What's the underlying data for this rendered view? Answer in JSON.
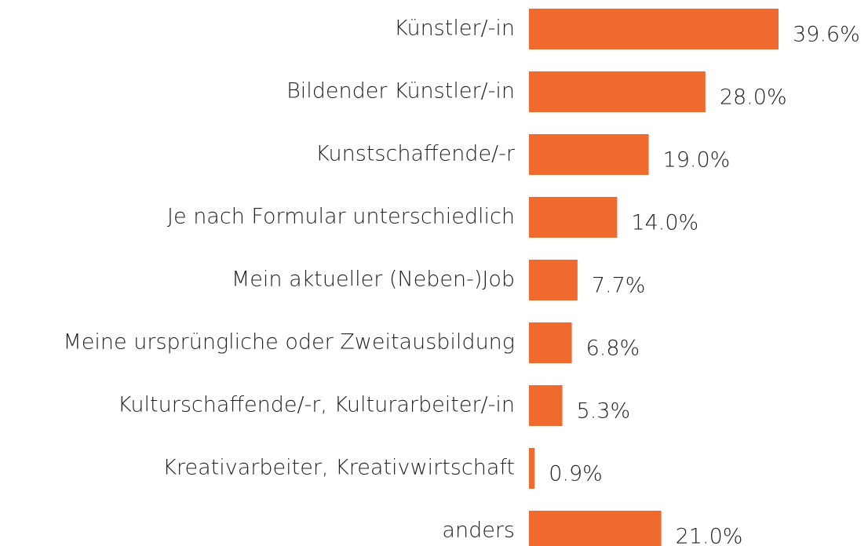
{
  "chart_data": {
    "type": "barh",
    "categories": [
      "Künstler/-in",
      "Bildender Künstler/-in",
      "Kunstschaffende/-r",
      "Je nach Formular unterschiedlich",
      "Mein aktueller (Neben-)Job",
      "Meine ursprüngliche oder Zweitausbildung",
      "Kulturschaffende/-r, Kulturarbeiter/-in",
      "Kreativarbeiter, Kreativwirtschaft",
      "anders"
    ],
    "values": [
      39.6,
      28.0,
      19.0,
      14.0,
      7.7,
      6.8,
      5.3,
      0.9,
      21.0
    ],
    "value_labels": [
      "39.6%",
      "28.0%",
      "19.0%",
      "14.0%",
      "7.7%",
      "6.8%",
      "5.3%",
      "0.9%",
      "21.0%"
    ],
    "color": "#f0692f"
  }
}
